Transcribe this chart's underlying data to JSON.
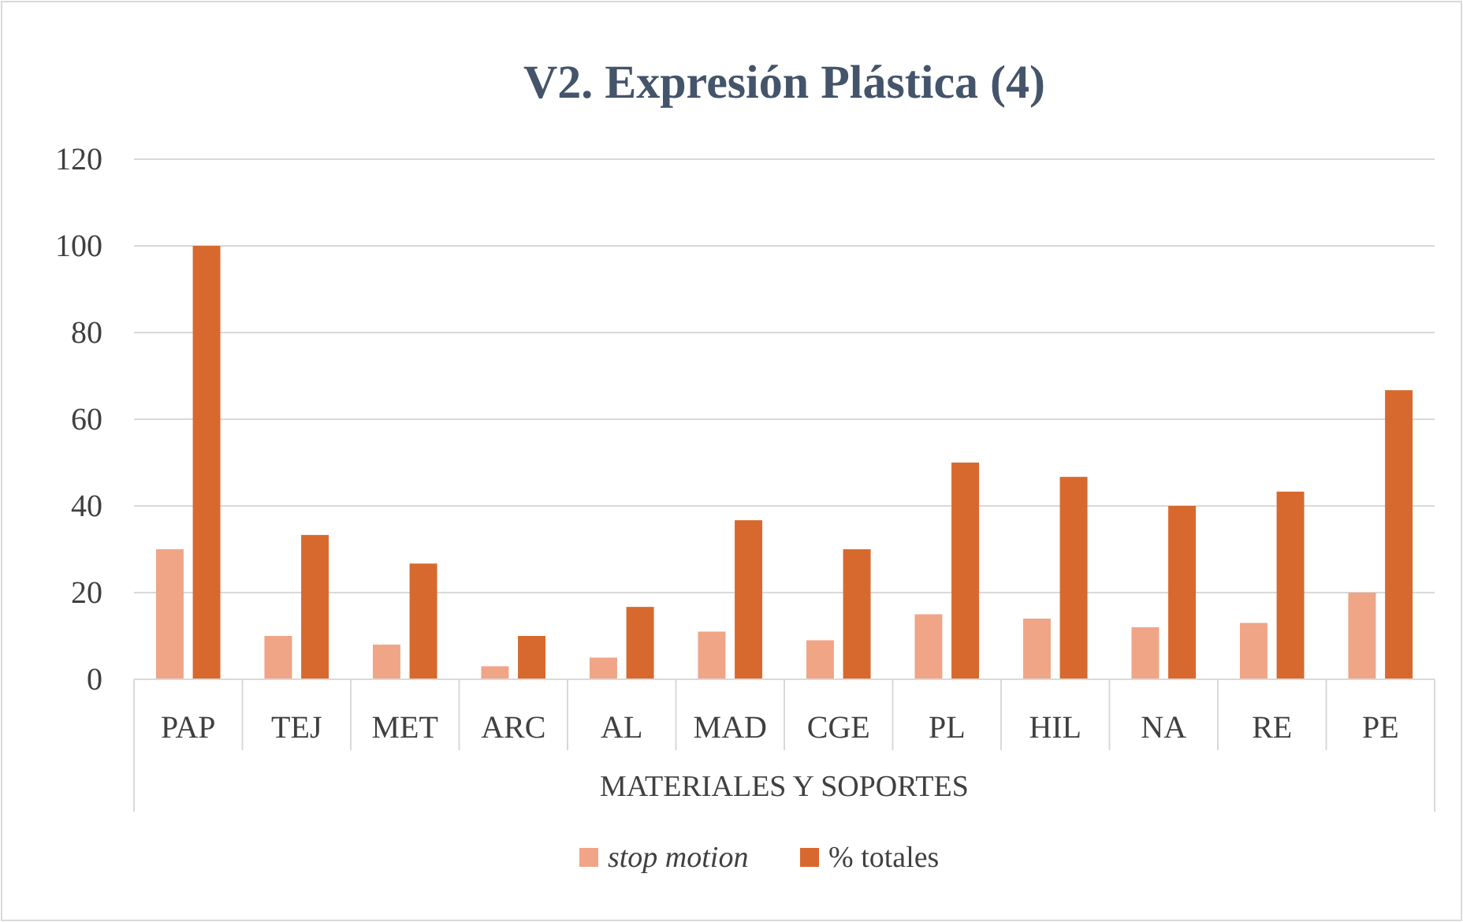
{
  "chart_data": {
    "type": "bar",
    "title": "V2. Expresión Plástica (4)",
    "xlabel": "MATERIALES Y SOPORTES",
    "categories": [
      "PAP",
      "TEJ",
      "MET",
      "ARC",
      "AL",
      "MAD",
      "CGE",
      "PL",
      "HIL",
      "NA",
      "RE",
      "PE"
    ],
    "series": [
      {
        "name": "stop motion",
        "color": "#f0a587",
        "values": [
          30,
          10,
          8,
          3,
          5,
          11,
          9,
          15,
          14,
          12,
          13,
          20
        ]
      },
      {
        "name": "% totales",
        "color": "#d8692e",
        "values": [
          100,
          33.3,
          26.7,
          10,
          16.7,
          36.7,
          30,
          50,
          46.7,
          40,
          43.3,
          66.7
        ]
      }
    ],
    "ylim": [
      0,
      120
    ],
    "yticks": [
      0,
      20,
      40,
      60,
      80,
      100,
      120
    ],
    "grid": "y",
    "legend": "bottom"
  }
}
